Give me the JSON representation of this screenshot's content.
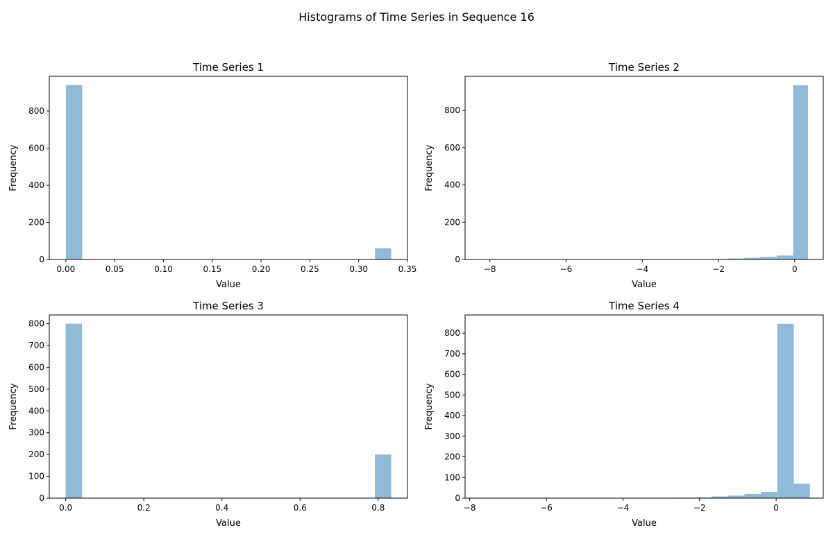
{
  "figure": {
    "title": "Histograms of Time Series in Sequence 16"
  },
  "style": {
    "bar_color": "#1f77b4",
    "bar_opacity": 0.5,
    "axis_color": "#000000",
    "background": "#ffffff"
  },
  "chart_data": [
    {
      "type": "bar",
      "subtype": "histogram",
      "title": "Time Series 1",
      "xlabel": "Value",
      "ylabel": "Frequency",
      "xlim": [
        -0.017,
        0.35
      ],
      "ylim": [
        0,
        987
      ],
      "xticks": [
        0.0,
        0.05,
        0.1,
        0.15,
        0.2,
        0.25,
        0.3,
        0.35
      ],
      "xtick_labels": [
        "0.00",
        "0.05",
        "0.10",
        "0.15",
        "0.20",
        "0.25",
        "0.30",
        "0.35"
      ],
      "yticks": [
        0,
        200,
        400,
        600,
        800
      ],
      "yticks_labels": [
        "0",
        "200",
        "400",
        "600",
        "800"
      ],
      "bins": [
        {
          "x0": 0.0,
          "x1": 0.0167,
          "count": 940
        },
        {
          "x0": 0.3167,
          "x1": 0.3333,
          "count": 60
        }
      ],
      "grid": false
    },
    {
      "type": "bar",
      "subtype": "histogram",
      "title": "Time Series 2",
      "xlabel": "Value",
      "ylabel": "Frequency",
      "xlim": [
        -8.65,
        0.75
      ],
      "ylim": [
        0,
        983
      ],
      "xticks": [
        -8,
        -6,
        -4,
        -2,
        0
      ],
      "xtick_labels": [
        "−8",
        "−6",
        "−4",
        "−2",
        "0"
      ],
      "yticks": [
        0,
        200,
        400,
        600,
        800
      ],
      "yticks_labels": [
        "0",
        "200",
        "400",
        "600",
        "800"
      ],
      "bins": [
        {
          "x0": -8.22,
          "x1": -7.79,
          "count": 1
        },
        {
          "x0": -4.34,
          "x1": -3.91,
          "count": 1
        },
        {
          "x0": -3.91,
          "x1": -3.48,
          "count": 1
        },
        {
          "x0": -3.48,
          "x1": -3.05,
          "count": 1
        },
        {
          "x0": -3.05,
          "x1": -2.62,
          "count": 1
        },
        {
          "x0": -2.62,
          "x1": -2.19,
          "count": 1
        },
        {
          "x0": -2.19,
          "x1": -1.76,
          "count": 2
        },
        {
          "x0": -1.76,
          "x1": -1.33,
          "count": 5
        },
        {
          "x0": -1.33,
          "x1": -0.9,
          "count": 9
        },
        {
          "x0": -0.9,
          "x1": -0.47,
          "count": 14
        },
        {
          "x0": -0.47,
          "x1": -0.04,
          "count": 21
        },
        {
          "x0": -0.04,
          "x1": 0.35,
          "count": 935
        }
      ],
      "grid": false
    },
    {
      "type": "bar",
      "subtype": "histogram",
      "title": "Time Series 3",
      "xlabel": "Value",
      "ylabel": "Frequency",
      "xlim": [
        -0.042,
        0.875
      ],
      "ylim": [
        0,
        840
      ],
      "xticks": [
        0.0,
        0.2,
        0.4,
        0.6,
        0.8
      ],
      "xtick_labels": [
        "0.0",
        "0.2",
        "0.4",
        "0.6",
        "0.8"
      ],
      "yticks": [
        0,
        100,
        200,
        300,
        400,
        500,
        600,
        700,
        800
      ],
      "yticks_labels": [
        "0",
        "100",
        "200",
        "300",
        "400",
        "500",
        "600",
        "700",
        "800"
      ],
      "bins": [
        {
          "x0": 0.0,
          "x1": 0.0417,
          "count": 800
        },
        {
          "x0": 0.7917,
          "x1": 0.8333,
          "count": 200
        }
      ],
      "grid": false
    },
    {
      "type": "bar",
      "subtype": "histogram",
      "title": "Time Series 4",
      "xlabel": "Value",
      "ylabel": "Frequency",
      "xlim": [
        -8.12,
        1.23
      ],
      "ylim": [
        0,
        888
      ],
      "xticks": [
        -8,
        -6,
        -4,
        -2,
        0
      ],
      "xtick_labels": [
        "−8",
        "−6",
        "−4",
        "−2",
        "0"
      ],
      "yticks": [
        0,
        100,
        200,
        300,
        400,
        500,
        600,
        700,
        800
      ],
      "yticks_labels": [
        "0",
        "100",
        "200",
        "300",
        "400",
        "500",
        "600",
        "700",
        "800"
      ],
      "bins": [
        {
          "x0": -7.7,
          "x1": -7.27,
          "count": 1
        },
        {
          "x0": -4.27,
          "x1": -3.84,
          "count": 1
        },
        {
          "x0": -3.84,
          "x1": -3.41,
          "count": 1
        },
        {
          "x0": -3.41,
          "x1": -2.98,
          "count": 1
        },
        {
          "x0": -2.98,
          "x1": -2.55,
          "count": 1
        },
        {
          "x0": -2.55,
          "x1": -2.12,
          "count": 2
        },
        {
          "x0": -2.12,
          "x1": -1.69,
          "count": 3
        },
        {
          "x0": -1.69,
          "x1": -1.26,
          "count": 8
        },
        {
          "x0": -1.26,
          "x1": -0.83,
          "count": 12
        },
        {
          "x0": -0.83,
          "x1": -0.4,
          "count": 20
        },
        {
          "x0": -0.4,
          "x1": 0.03,
          "count": 30
        },
        {
          "x0": 0.03,
          "x1": 0.46,
          "count": 845
        },
        {
          "x0": 0.46,
          "x1": 0.88,
          "count": 70
        }
      ],
      "grid": false
    }
  ]
}
